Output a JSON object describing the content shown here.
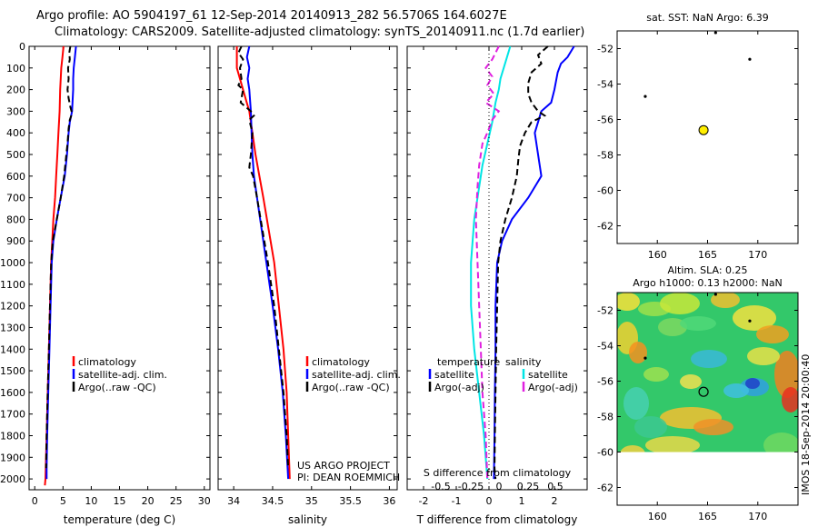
{
  "header": {
    "line1": "Argo profile: AO 5904197_61 12-Sep-2014 20140913_282 56.5706S 164.6027E",
    "line2": "Climatology: CARS2009. Satellite-adjusted climatology: synTS_20140911.nc (1.7d earlier)"
  },
  "colors": {
    "climatology": "#ff0000",
    "satellite": "#0000ff",
    "argo": "#000000",
    "salinity_satellite": "#00e5e5",
    "salinity_argo": "#e020e0"
  },
  "chart_data": [
    {
      "id": "temperature",
      "type": "line",
      "xlabel": "temperature (deg C)",
      "ylabel": "",
      "xlim": [
        -1,
        31
      ],
      "ylim": [
        2050,
        0
      ],
      "xticks": [
        0,
        5,
        10,
        15,
        20,
        25,
        30
      ],
      "yticks": [
        0,
        100,
        200,
        300,
        400,
        500,
        600,
        700,
        800,
        900,
        1000,
        1100,
        1200,
        1300,
        1400,
        1500,
        1600,
        1700,
        1800,
        1900,
        2000
      ],
      "legend": [
        "climatology",
        "satellite-adj. clim.",
        "Argo(..raw -QC)"
      ],
      "series": [
        {
          "name": "climatology",
          "color": "#ff0000",
          "dash": "",
          "points": [
            [
              5.1,
              0
            ],
            [
              4.9,
              50
            ],
            [
              4.7,
              100
            ],
            [
              4.6,
              150
            ],
            [
              4.5,
              200
            ],
            [
              4.4,
              300
            ],
            [
              4.2,
              400
            ],
            [
              4.0,
              500
            ],
            [
              3.8,
              600
            ],
            [
              3.6,
              700
            ],
            [
              3.3,
              800
            ],
            [
              3.1,
              900
            ],
            [
              2.9,
              1000
            ],
            [
              2.7,
              1200
            ],
            [
              2.5,
              1400
            ],
            [
              2.3,
              1600
            ],
            [
              2.1,
              1800
            ],
            [
              1.9,
              2000
            ],
            [
              1.8,
              2030
            ]
          ]
        },
        {
          "name": "satellite-adj. clim.",
          "color": "#0000ff",
          "dash": "",
          "points": [
            [
              7.3,
              0
            ],
            [
              7.1,
              50
            ],
            [
              6.9,
              100
            ],
            [
              6.8,
              150
            ],
            [
              6.8,
              200
            ],
            [
              6.6,
              300
            ],
            [
              6.2,
              350
            ],
            [
              6.0,
              400
            ],
            [
              5.7,
              500
            ],
            [
              5.3,
              600
            ],
            [
              4.6,
              700
            ],
            [
              3.9,
              800
            ],
            [
              3.3,
              900
            ],
            [
              3.0,
              1000
            ],
            [
              2.8,
              1200
            ],
            [
              2.6,
              1400
            ],
            [
              2.4,
              1600
            ],
            [
              2.2,
              1800
            ],
            [
              2.1,
              1950
            ],
            [
              2.1,
              2000
            ]
          ]
        },
        {
          "name": "Argo(..raw -QC)",
          "color": "#000000",
          "dash": "7,4",
          "points": [
            [
              6.3,
              0
            ],
            [
              6.1,
              30
            ],
            [
              6.2,
              60
            ],
            [
              5.9,
              100
            ],
            [
              6.0,
              150
            ],
            [
              5.8,
              200
            ],
            [
              6.0,
              240
            ],
            [
              6.3,
              280
            ],
            [
              6.6,
              310
            ],
            [
              6.2,
              340
            ],
            [
              6.0,
              380
            ],
            [
              5.8,
              450
            ],
            [
              5.6,
              500
            ],
            [
              5.2,
              600
            ],
            [
              4.6,
              700
            ],
            [
              3.9,
              800
            ],
            [
              3.2,
              900
            ],
            [
              2.9,
              1000
            ],
            [
              2.7,
              1200
            ],
            [
              2.5,
              1400
            ],
            [
              2.3,
              1600
            ],
            [
              2.1,
              1800
            ],
            [
              2.0,
              1950
            ]
          ]
        }
      ]
    },
    {
      "id": "salinity",
      "type": "line",
      "xlabel": "salinity",
      "ylabel": "",
      "xlim": [
        33.8,
        36.1
      ],
      "ylim": [
        2050,
        0
      ],
      "xticks": [
        34,
        34.5,
        35,
        35.5,
        36
      ],
      "xtick_labels": [
        "34",
        "34.5",
        "35",
        "35.5",
        "36"
      ],
      "legend": [
        "climatology",
        "satellite-adj. clim.",
        "Argo(..raw -QC)"
      ],
      "annotation": [
        "US ARGO PROJECT",
        "PI: DEAN ROEMMICH"
      ],
      "series": [
        {
          "name": "climatology",
          "color": "#ff0000",
          "dash": "",
          "points": [
            [
              34.04,
              0
            ],
            [
              34.04,
              100
            ],
            [
              34.08,
              150
            ],
            [
              34.12,
              200
            ],
            [
              34.16,
              250
            ],
            [
              34.2,
              300
            ],
            [
              34.24,
              400
            ],
            [
              34.28,
              500
            ],
            [
              34.33,
              600
            ],
            [
              34.38,
              700
            ],
            [
              34.45,
              850
            ],
            [
              34.52,
              1000
            ],
            [
              34.58,
              1200
            ],
            [
              34.64,
              1400
            ],
            [
              34.68,
              1600
            ],
            [
              34.7,
              1800
            ],
            [
              34.72,
              2000
            ]
          ]
        },
        {
          "name": "satellite-adj. clim.",
          "color": "#0000ff",
          "dash": "",
          "points": [
            [
              34.2,
              0
            ],
            [
              34.17,
              50
            ],
            [
              34.2,
              100
            ],
            [
              34.18,
              150
            ],
            [
              34.2,
              200
            ],
            [
              34.22,
              300
            ],
            [
              34.23,
              400
            ],
            [
              34.24,
              500
            ],
            [
              34.26,
              600
            ],
            [
              34.3,
              700
            ],
            [
              34.36,
              850
            ],
            [
              34.42,
              1000
            ],
            [
              34.5,
              1200
            ],
            [
              34.57,
              1400
            ],
            [
              34.63,
              1600
            ],
            [
              34.67,
              1800
            ],
            [
              34.7,
              2000
            ]
          ]
        },
        {
          "name": "Argo(..raw -QC)",
          "color": "#000000",
          "dash": "7,4",
          "points": [
            [
              34.1,
              0
            ],
            [
              34.06,
              30
            ],
            [
              34.12,
              60
            ],
            [
              34.08,
              100
            ],
            [
              34.1,
              150
            ],
            [
              34.06,
              180
            ],
            [
              34.12,
              200
            ],
            [
              34.09,
              260
            ],
            [
              34.22,
              300
            ],
            [
              34.26,
              320
            ],
            [
              34.2,
              340
            ],
            [
              34.24,
              400
            ],
            [
              34.22,
              500
            ],
            [
              34.2,
              560
            ],
            [
              34.25,
              600
            ],
            [
              34.3,
              700
            ],
            [
              34.37,
              850
            ],
            [
              34.44,
              1000
            ],
            [
              34.52,
              1200
            ],
            [
              34.58,
              1400
            ],
            [
              34.64,
              1600
            ],
            [
              34.68,
              1800
            ],
            [
              34.7,
              1950
            ]
          ]
        }
      ]
    },
    {
      "id": "difference",
      "type": "line",
      "xlabel": "T difference from climatology",
      "xlabel2": "S difference from climatology",
      "ylabel": "",
      "xlim": [
        -2.5,
        3.0
      ],
      "ylim": [
        2050,
        0
      ],
      "xticks": [
        -2,
        -1,
        0,
        1,
        2
      ],
      "xtick_labels": [
        "-2",
        "-1",
        "0",
        "1",
        "2"
      ],
      "top_ticks": [
        -0.5,
        -0.25,
        0,
        0.25,
        0.5
      ],
      "top_tick_labels": [
        "-0.5",
        "-0.25",
        "0",
        "0.25",
        "0.5"
      ],
      "legend_temperature_title": "temperature",
      "legend_salinity_title": "salinity",
      "legend_entries": [
        "satellite",
        "Argo(-adj)"
      ],
      "series": [
        {
          "name": "T satellite",
          "color": "#0000ff",
          "dash": "",
          "points": [
            [
              2.6,
              0
            ],
            [
              2.4,
              50
            ],
            [
              2.2,
              80
            ],
            [
              2.1,
              120
            ],
            [
              2.0,
              200
            ],
            [
              1.9,
              260
            ],
            [
              1.6,
              300
            ],
            [
              1.5,
              350
            ],
            [
              1.4,
              400
            ],
            [
              1.5,
              500
            ],
            [
              1.6,
              600
            ],
            [
              1.2,
              700
            ],
            [
              0.7,
              800
            ],
            [
              0.4,
              900
            ],
            [
              0.25,
              1000
            ],
            [
              0.2,
              1200
            ],
            [
              0.2,
              1400
            ],
            [
              0.18,
              1600
            ],
            [
              0.17,
              1800
            ],
            [
              0.15,
              2000
            ]
          ]
        },
        {
          "name": "T Argo(-adj)",
          "color": "#000000",
          "dash": "7,4",
          "points": [
            [
              1.8,
              0
            ],
            [
              1.5,
              40
            ],
            [
              1.6,
              80
            ],
            [
              1.3,
              120
            ],
            [
              1.2,
              170
            ],
            [
              1.2,
              220
            ],
            [
              1.3,
              260
            ],
            [
              1.5,
              300
            ],
            [
              1.7,
              320
            ],
            [
              1.3,
              350
            ],
            [
              1.1,
              400
            ],
            [
              0.95,
              460
            ],
            [
              0.9,
              520
            ],
            [
              0.85,
              600
            ],
            [
              0.7,
              700
            ],
            [
              0.5,
              800
            ],
            [
              0.35,
              900
            ],
            [
              0.28,
              1000
            ],
            [
              0.25,
              1200
            ],
            [
              0.22,
              1400
            ],
            [
              0.2,
              1600
            ],
            [
              0.18,
              1800
            ],
            [
              0.17,
              1950
            ],
            [
              0.2,
              2000
            ]
          ]
        },
        {
          "name": "S satellite",
          "color": "#00e5e5",
          "dash": "",
          "points": [
            [
              0.65,
              0
            ],
            [
              0.55,
              50
            ],
            [
              0.45,
              100
            ],
            [
              0.35,
              150
            ],
            [
              0.3,
              200
            ],
            [
              0.2,
              260
            ],
            [
              0.1,
              350
            ],
            [
              -0.05,
              450
            ],
            [
              -0.2,
              550
            ],
            [
              -0.3,
              650
            ],
            [
              -0.45,
              800
            ],
            [
              -0.55,
              1000
            ],
            [
              -0.55,
              1200
            ],
            [
              -0.45,
              1400
            ],
            [
              -0.3,
              1600
            ],
            [
              -0.15,
              1800
            ],
            [
              -0.05,
              2000
            ]
          ]
        },
        {
          "name": "S Argo(-adj)",
          "color": "#e020e0",
          "dash": "7,4",
          "points": [
            [
              0.3,
              0
            ],
            [
              0.1,
              60
            ],
            [
              -0.1,
              100
            ],
            [
              0.1,
              140
            ],
            [
              -0.05,
              180
            ],
            [
              0.15,
              220
            ],
            [
              -0.1,
              260
            ],
            [
              0.3,
              300
            ],
            [
              0.1,
              340
            ],
            [
              -0.05,
              400
            ],
            [
              -0.2,
              450
            ],
            [
              -0.3,
              550
            ],
            [
              -0.35,
              650
            ],
            [
              -0.4,
              800
            ],
            [
              -0.35,
              1000
            ],
            [
              -0.3,
              1200
            ],
            [
              -0.25,
              1400
            ],
            [
              -0.2,
              1600
            ],
            [
              -0.1,
              1800
            ],
            [
              -0.05,
              2000
            ]
          ]
        }
      ]
    },
    {
      "id": "sst-map",
      "type": "scatter",
      "title": "sat. SST: NaN Argo: 6.39",
      "xlim": [
        156,
        174
      ],
      "ylim": [
        -63,
        -51
      ],
      "xticks": [
        160,
        165,
        170
      ],
      "yticks": [
        -52,
        -54,
        -56,
        -58,
        -60,
        -62
      ],
      "argo_point": [
        164.6,
        -56.6
      ],
      "track_points": [
        [
          165.8,
          -51.1
        ],
        [
          169.2,
          -52.6
        ],
        [
          158.8,
          -54.7
        ]
      ]
    },
    {
      "id": "sla-map",
      "type": "heatmap",
      "title_line1": "Altim. SLA: 0.25",
      "title_line2": "Argo h1000: 0.13 h2000: NaN",
      "side_label": "IMOS 18-Sep-2014 20:00:40",
      "xlim": [
        156,
        174
      ],
      "ylim": [
        -63,
        -51
      ],
      "xticks": [
        160,
        165,
        170
      ],
      "yticks": [
        -52,
        -54,
        -56,
        -58,
        -60,
        -62
      ],
      "data_lat_range": [
        -60,
        -51
      ],
      "argo_point": [
        164.6,
        -56.6
      ],
      "track_points": [
        [
          165.8,
          -51.1
        ],
        [
          169.2,
          -52.6
        ],
        [
          158.8,
          -54.7
        ]
      ]
    }
  ]
}
